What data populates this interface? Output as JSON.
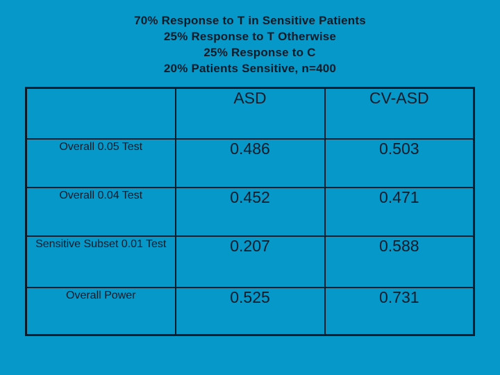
{
  "slide": {
    "background_color": "#0598C9",
    "ink_color": "#0C1B28",
    "title_lines": [
      "70% Response to T in Sensitive Patients",
      "25% Response to T Otherwise",
      "25% Response to C",
      "20% Patients Sensitive, n=400"
    ]
  },
  "chart_data": {
    "type": "table",
    "title": "70% Response to T in Sensitive Patients; 25% Response to T Otherwise; 25% Response to C; 20% Patients Sensitive, n=400",
    "columns": [
      "",
      "ASD",
      "CV-ASD"
    ],
    "rows": [
      {
        "label": "Overall 0.05 Test",
        "values": [
          "0.486",
          "0.503"
        ]
      },
      {
        "label": "Overall 0.04 Test",
        "values": [
          "0.452",
          "0.471"
        ]
      },
      {
        "label": "Sensitive Subset 0.01 Test",
        "values": [
          "0.207",
          "0.588"
        ]
      },
      {
        "label": "Overall Power",
        "values": [
          "0.525",
          "0.731"
        ]
      }
    ],
    "layout": {
      "columns_equal_width": true,
      "grid": true,
      "value_columns": [
        "ASD",
        "CV-ASD"
      ]
    }
  }
}
